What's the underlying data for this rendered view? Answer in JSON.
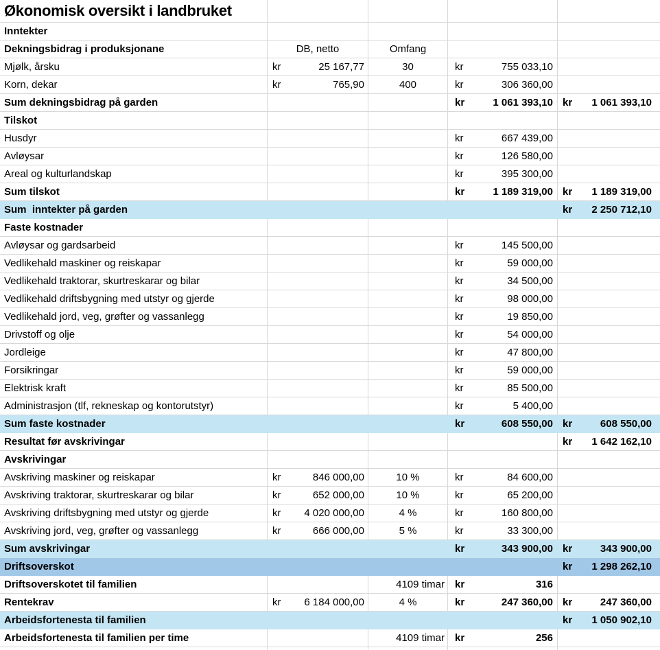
{
  "title": "Økonomisk oversikt i landbruket",
  "currency_symbol": "kr",
  "colors": {
    "highlight_light": "#c4e5f3",
    "highlight_medium": "#a2c8e8",
    "gridline": "#d8d8d8"
  },
  "table": {
    "rows": [
      {
        "label": "Inntekter",
        "bold": true
      },
      {
        "label": "Dekningsbidrag i produksjonane",
        "bold": true,
        "b": {
          "text": "DB, netto"
        },
        "c": "Omfang"
      },
      {
        "label": "Mjølk, årsku",
        "b": {
          "v": "25 167,77"
        },
        "c": "30",
        "d": {
          "v": "755 033,10"
        }
      },
      {
        "label": "Korn, dekar",
        "b": {
          "v": "765,90"
        },
        "c": "400",
        "d": {
          "v": "306 360,00"
        }
      },
      {
        "label": "Sum dekningsbidrag på garden",
        "bold": true,
        "d": {
          "v": "1 061 393,10",
          "vbold": true
        },
        "e": {
          "v": "1 061 393,10",
          "vbold": true
        }
      },
      {
        "label": "Tilskot",
        "bold": true
      },
      {
        "label": "Husdyr",
        "d": {
          "v": "667 439,00"
        }
      },
      {
        "label": "Avløysar",
        "d": {
          "v": "126 580,00"
        }
      },
      {
        "label": "Areal og kulturlandskap",
        "d": {
          "v": "395 300,00"
        }
      },
      {
        "label": "Sum tilskot",
        "bold": true,
        "d": {
          "v": "1 189 319,00",
          "vbold": true
        },
        "e": {
          "v": "1 189 319,00",
          "vbold": true
        }
      },
      {
        "label": "Sum  inntekter på garden",
        "bold": true,
        "bg": "light",
        "e": {
          "v": "2 250 712,10",
          "vbold": true
        }
      },
      {
        "label": "Faste kostnader",
        "bold": true
      },
      {
        "label": "Avløysar og gardsarbeid",
        "d": {
          "v": "145 500,00"
        }
      },
      {
        "label": "Vedlikehald maskiner og reiskapar",
        "d": {
          "v": "59 000,00"
        }
      },
      {
        "label": "Vedlikehald traktorar, skurtreskarar og bilar",
        "d": {
          "v": "34 500,00"
        }
      },
      {
        "label": "Vedlikehald driftsbygning med utstyr og gjerde",
        "d": {
          "v": "98 000,00"
        }
      },
      {
        "label": "Vedlikehald jord, veg, grøfter og vassanlegg",
        "d": {
          "v": "19 850,00"
        }
      },
      {
        "label": "Drivstoff og olje",
        "d": {
          "v": "54 000,00"
        }
      },
      {
        "label": "Jordleige",
        "d": {
          "v": "47 800,00"
        }
      },
      {
        "label": "Forsikringar",
        "d": {
          "v": "59 000,00"
        }
      },
      {
        "label": "Elektrisk kraft",
        "d": {
          "v": "85 500,00"
        }
      },
      {
        "label": "Administrasjon (tlf, rekneskap og kontorutstyr)",
        "d": {
          "v": "5 400,00"
        }
      },
      {
        "label": "Sum faste kostnader",
        "bold": true,
        "bg": "light",
        "d": {
          "v": "608 550,00",
          "vbold": true
        },
        "e": {
          "v": "608 550,00",
          "vbold": true
        }
      },
      {
        "label": "Resultat før avskrivingar",
        "bold": true,
        "e": {
          "v": "1 642 162,10",
          "vbold": true
        }
      },
      {
        "label": "Avskrivingar",
        "bold": true
      },
      {
        "label": "Avskriving maskiner og reiskapar",
        "b": {
          "v": "846 000,00"
        },
        "c": "10 %",
        "d": {
          "v": "84 600,00"
        }
      },
      {
        "label": "Avskriving traktorar, skurtreskarar og bilar",
        "b": {
          "v": "652 000,00"
        },
        "c": "10 %",
        "d": {
          "v": "65 200,00"
        }
      },
      {
        "label": "Avskriving driftsbygning med utstyr og gjerde",
        "b": {
          "v": "4 020 000,00"
        },
        "c": "4 %",
        "d": {
          "v": "160 800,00"
        }
      },
      {
        "label": "Avskriving jord, veg, grøfter og vassanlegg",
        "b": {
          "v": "666 000,00"
        },
        "c": "5 %",
        "d": {
          "v": "33 300,00"
        }
      },
      {
        "label": "Sum avskrivingar",
        "bold": true,
        "bg": "light",
        "d": {
          "v": "343 900,00",
          "vbold": true
        },
        "e": {
          "v": "343 900,00",
          "vbold": true
        }
      },
      {
        "label": "Driftsoverskot",
        "bold": true,
        "bg": "mid",
        "e": {
          "v": "1 298 262,10",
          "vbold": true
        }
      },
      {
        "label": "Driftsoverskotet til familien",
        "bold": true,
        "c": "4109 timar",
        "c_align": "right",
        "d": {
          "v": "316",
          "vbold": true
        }
      },
      {
        "label": "Rentekrav",
        "bold": true,
        "b": {
          "v": "6 184 000,00"
        },
        "c": "4 %",
        "d": {
          "v": "247 360,00",
          "vbold": true
        },
        "e": {
          "v": "247 360,00",
          "vbold": true
        }
      },
      {
        "label": "Arbeidsfortenesta til familien",
        "bold": true,
        "bg": "light",
        "e": {
          "v": "1 050 902,10",
          "vbold": true
        }
      },
      {
        "label": "Arbeidsfortenesta til familien per time",
        "bold": true,
        "c": "4109 timar",
        "c_align": "right",
        "d": {
          "v": "256",
          "vbold": true
        }
      },
      {
        "partial": true
      }
    ]
  }
}
